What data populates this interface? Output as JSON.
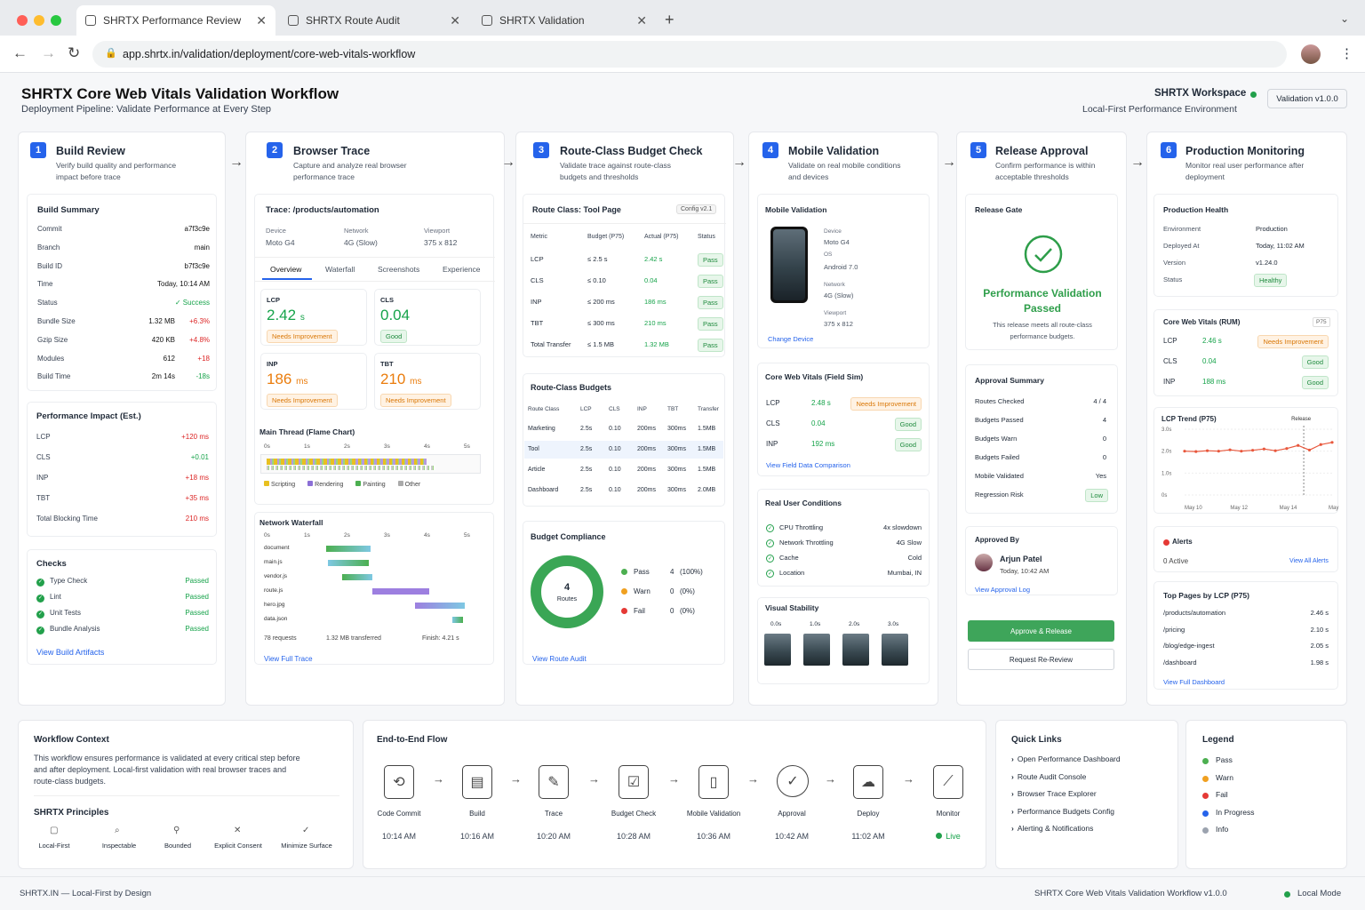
{
  "browser": {
    "tabs": [
      "SHRTX Performance Review",
      "SHRTX Route Audit",
      "SHRTX Validation"
    ],
    "url": "app.shrtx.in/validation/deployment/core-web-vitals-workflow"
  },
  "header": {
    "title": "SHRTX Core Web Vitals Validation Workflow",
    "subtitle": "Deployment Pipeline: Validate Performance at Every Step",
    "workspace": "SHRTX Workspace",
    "env": "Local-First Performance Environment",
    "version": "Validation v1.0.0"
  },
  "steps": [
    {
      "num": "1",
      "title": "Build Review",
      "desc1": "Verify build quality and performance",
      "desc2": "impact before trace"
    },
    {
      "num": "2",
      "title": "Browser Trace",
      "desc1": "Capture and analyze real browser",
      "desc2": "performance trace"
    },
    {
      "num": "3",
      "title": "Route-Class Budget Check",
      "desc1": "Validate trace against route-class",
      "desc2": "budgets and thresholds"
    },
    {
      "num": "4",
      "title": "Mobile Validation",
      "desc1": "Validate on real mobile conditions",
      "desc2": "and devices"
    },
    {
      "num": "5",
      "title": "Release Approval",
      "desc1": "Confirm performance is within",
      "desc2": "acceptable thresholds"
    },
    {
      "num": "6",
      "title": "Production Monitoring",
      "desc1": "Monitor real user performance after",
      "desc2": "deployment"
    }
  ],
  "build": {
    "title": "Build Summary",
    "rows": [
      [
        "Commit",
        "a7f3c9e",
        ""
      ],
      [
        "Branch",
        "main",
        ""
      ],
      [
        "Build ID",
        "b7f3c9e",
        ""
      ],
      [
        "Time",
        "Today, 10:14 AM",
        ""
      ],
      [
        "Status",
        "✓ Success",
        ""
      ],
      [
        "Bundle Size",
        "1.32 MB",
        "+6.3%"
      ],
      [
        "Gzip Size",
        "420 KB",
        "+4.8%"
      ],
      [
        "Modules",
        "612",
        "+18"
      ],
      [
        "Build Time",
        "2m 14s",
        "-18s"
      ]
    ]
  },
  "impact": {
    "title": "Performance Impact (Est.)",
    "rows": [
      [
        "LCP",
        "+120 ms"
      ],
      [
        "CLS",
        "+0.01"
      ],
      [
        "INP",
        "+18 ms"
      ],
      [
        "TBT",
        "+35 ms"
      ],
      [
        "Total Blocking Time",
        "210 ms"
      ]
    ]
  },
  "checks": {
    "title": "Checks",
    "rows": [
      [
        "Type Check",
        "Passed"
      ],
      [
        "Lint",
        "Passed"
      ],
      [
        "Unit Tests",
        "Passed"
      ],
      [
        "Bundle Analysis",
        "Passed"
      ]
    ],
    "link": "View Build Artifacts"
  },
  "trace": {
    "title": "Trace: /products/automation",
    "device_label": "Device",
    "device": "Moto G4",
    "network_label": "Network",
    "network": "4G (Slow)",
    "viewport_label": "Viewport",
    "viewport": "375 x 812",
    "tabs": [
      "Overview",
      "Waterfall",
      "Screenshots",
      "Experience"
    ],
    "metrics": [
      {
        "name": "LCP",
        "value": "2.42",
        "unit": "s",
        "badge": "Needs Improvement"
      },
      {
        "name": "CLS",
        "value": "0.04",
        "unit": "",
        "badge": "Good"
      },
      {
        "name": "INP",
        "value": "186",
        "unit": "ms",
        "badge": "Needs Improvement"
      },
      {
        "name": "TBT",
        "value": "210",
        "unit": "ms",
        "badge": "Needs Improvement"
      }
    ],
    "flame_title": "Main Thread (Flame Chart)",
    "ticks": [
      "0s",
      "1s",
      "2s",
      "3s",
      "4s",
      "5s"
    ],
    "legend": [
      "Scripting",
      "Rendering",
      "Painting",
      "Other"
    ],
    "waterfall_title": "Network Waterfall",
    "files": [
      "document",
      "main.js",
      "vendor.js",
      "route.js",
      "hero.jpg",
      "data.json"
    ],
    "requests": "78 requests",
    "transferred": "1.32 MB transferred",
    "finish": "Finish: 4.21 s",
    "link": "View Full Trace"
  },
  "budget": {
    "title": "Route Class: Tool Page",
    "config": "Config v2.1",
    "cols": [
      "Metric",
      "Budget (P75)",
      "Actual (P75)",
      "Status"
    ],
    "rows": [
      [
        "LCP",
        "≤ 2.5 s",
        "2.42 s",
        "Pass"
      ],
      [
        "CLS",
        "≤ 0.10",
        "0.04",
        "Pass"
      ],
      [
        "INP",
        "≤ 200 ms",
        "186 ms",
        "Pass"
      ],
      [
        "TBT",
        "≤ 300 ms",
        "210 ms",
        "Pass"
      ],
      [
        "Total Transfer",
        "≤ 1.5 MB",
        "1.32 MB",
        "Pass"
      ]
    ],
    "rc_title": "Route-Class Budgets",
    "rc_cols": [
      "Route Class",
      "LCP",
      "CLS",
      "INP",
      "TBT",
      "Transfer"
    ],
    "rc_rows": [
      [
        "Marketing",
        "2.5s",
        "0.10",
        "200ms",
        "300ms",
        "1.5MB"
      ],
      [
        "Tool",
        "2.5s",
        "0.10",
        "200ms",
        "300ms",
        "1.5MB"
      ],
      [
        "Article",
        "2.5s",
        "0.10",
        "200ms",
        "300ms",
        "1.5MB"
      ],
      [
        "Dashboard",
        "2.5s",
        "0.10",
        "200ms",
        "300ms",
        "2.0MB"
      ]
    ],
    "compliance_title": "Budget Compliance",
    "donut_num": "4",
    "donut_label": "Routes",
    "legend": [
      [
        "Pass",
        "4",
        "(100%)"
      ],
      [
        "Warn",
        "0",
        "(0%)"
      ],
      [
        "Fail",
        "0",
        "(0%)"
      ]
    ],
    "link": "View Route Audit"
  },
  "mobile": {
    "title": "Mobile Validation",
    "device_label": "Device",
    "device": "Moto G4",
    "os_label": "OS",
    "os": "Android 7.0",
    "network_label": "Network",
    "network": "4G (Slow)",
    "viewport_label": "Viewport",
    "viewport": "375 x 812",
    "link": "Change Device",
    "field_title": "Core Web Vitals (Field Sim)",
    "field": [
      [
        "LCP",
        "2.48 s",
        "Needs Improvement"
      ],
      [
        "CLS",
        "0.04",
        "Good"
      ],
      [
        "INP",
        "192 ms",
        "Good"
      ]
    ],
    "field_link": "View Field Data Comparison",
    "ruc_title": "Real User Conditions",
    "ruc": [
      [
        "CPU Throttling",
        "4x slowdown"
      ],
      [
        "Network Throttling",
        "4G Slow"
      ],
      [
        "Cache",
        "Cold"
      ],
      [
        "Location",
        "Mumbai, IN"
      ]
    ],
    "vs_title": "Visual Stability",
    "vs_times": [
      "0.0s",
      "1.0s",
      "2.0s",
      "3.0s"
    ]
  },
  "release": {
    "gate": "Release Gate",
    "passed": "Performance Validation Passed",
    "note1": "This release meets all route-class",
    "note2": "performance budgets.",
    "summary_title": "Approval Summary",
    "summary": [
      [
        "Routes Checked",
        "4 / 4"
      ],
      [
        "Budgets Passed",
        "4"
      ],
      [
        "Budgets Warn",
        "0"
      ],
      [
        "Budgets Failed",
        "0"
      ],
      [
        "Mobile Validated",
        "Yes"
      ],
      [
        "Regression Risk",
        "Low"
      ]
    ],
    "approved_by": "Approved By",
    "approver": "Arjun Patel",
    "approved_time": "Today, 10:42 AM",
    "log_link": "View Approval Log",
    "approve_btn": "Approve & Release",
    "reject_btn": "Request Re-Review"
  },
  "prod": {
    "health_title": "Production Health",
    "health": [
      [
        "Environment",
        "Production"
      ],
      [
        "Deployed At",
        "Today, 11:02 AM"
      ],
      [
        "Version",
        "v1.24.0"
      ],
      [
        "Status",
        "Healthy"
      ]
    ],
    "rum_title": "Core Web Vitals (RUM)",
    "rum_tag": "P75",
    "rum": [
      [
        "LCP",
        "2.46 s",
        "Needs Improvement"
      ],
      [
        "CLS",
        "0.04",
        "Good"
      ],
      [
        "INP",
        "188 ms",
        "Good"
      ]
    ],
    "trend_title": "LCP Trend (P75)",
    "trend_marker": "Release",
    "y_ticks": [
      "3.0s",
      "2.0s",
      "1.0s",
      "0s"
    ],
    "x_ticks": [
      "May 10",
      "May 12",
      "May 14",
      "May 16"
    ],
    "alerts_title": "Alerts",
    "alerts_active": "0 Active",
    "alerts_link": "View All Alerts",
    "pages_title": "Top Pages by LCP (P75)",
    "pages": [
      [
        "/products/automation",
        "2.46 s"
      ],
      [
        "/pricing",
        "2.10 s"
      ],
      [
        "/blog/edge-ingest",
        "2.05 s"
      ],
      [
        "/dashboard",
        "1.98 s"
      ]
    ],
    "pages_link": "View Full Dashboard"
  },
  "chart_data": {
    "type": "line",
    "title": "LCP Trend (P75)",
    "x": [
      "May 10",
      "",
      "",
      "",
      "May 12",
      "",
      "",
      "",
      "May 14",
      "",
      "",
      "",
      "May 16",
      ""
    ],
    "y_unit": "s",
    "ylim": [
      0,
      3
    ],
    "series": [
      {
        "values": [
          2.0,
          1.98,
          2.02,
          2.0,
          2.06,
          2.0,
          2.04,
          2.1,
          2.02,
          2.12,
          2.26,
          2.05,
          2.3,
          2.4
        ]
      }
    ],
    "annotations": [
      "Release"
    ]
  },
  "context": {
    "title": "Workflow Context",
    "text1": "This workflow ensures performance is validated at every critical step before",
    "text2": "and after deployment. Local-first validation with real browser traces and",
    "text3": "route-class budgets.",
    "principles_title": "SHRTX Principles",
    "principles": [
      "Local-First",
      "Inspectable",
      "Bounded",
      "Explicit Consent",
      "Minimize Surface"
    ]
  },
  "flow": {
    "title": "End-to-End Flow",
    "steps": [
      [
        "Code Commit",
        "10:14 AM"
      ],
      [
        "Build",
        "10:16 AM"
      ],
      [
        "Trace",
        "10:20 AM"
      ],
      [
        "Budget Check",
        "10:28 AM"
      ],
      [
        "Mobile Validation",
        "10:36 AM"
      ],
      [
        "Approval",
        "10:42 AM"
      ],
      [
        "Deploy",
        "11:02 AM"
      ],
      [
        "Monitor",
        "Live"
      ]
    ]
  },
  "quick": {
    "title": "Quick Links",
    "links": [
      "Open Performance Dashboard",
      "Route Audit Console",
      "Browser Trace Explorer",
      "Performance Budgets Config",
      "Alerting & Notifications"
    ]
  },
  "legend": {
    "title": "Legend",
    "items": [
      [
        "Pass",
        "#4caf50"
      ],
      [
        "Warn",
        "#f0a020"
      ],
      [
        "Fail",
        "#e53935"
      ],
      [
        "In Progress",
        "#2563eb"
      ],
      [
        "Info",
        "#9ca3af"
      ]
    ]
  },
  "footer": {
    "left": "SHRTX.IN — Local-First by Design",
    "right": "SHRTX Core Web Vitals Validation Workflow v1.0.0",
    "mode": "Local Mode"
  }
}
